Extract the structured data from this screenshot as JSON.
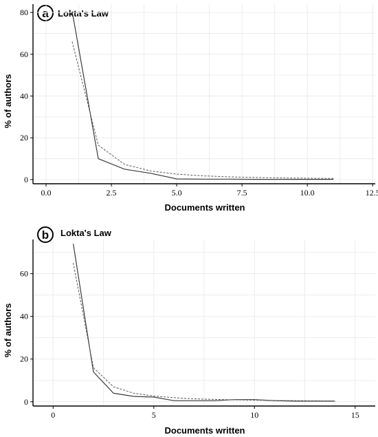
{
  "chart_data": [
    {
      "type": "line",
      "panel_label": "a",
      "title": "Lokta's Law",
      "xlabel": "Documents written",
      "ylabel": "% of authors",
      "xlim": [
        -0.5,
        12.6
      ],
      "ylim": [
        -2,
        84
      ],
      "xticks": [
        0,
        2.5,
        5,
        7.5,
        10,
        12.5
      ],
      "xtick_labels": [
        "0.0",
        "2.5",
        "5.0",
        "7.5",
        "10.0",
        "12.5"
      ],
      "yticks": [
        0,
        20,
        40,
        60,
        80
      ],
      "ytick_labels": [
        "0",
        "20",
        "40",
        "60",
        "80"
      ],
      "grid": true,
      "series": [
        {
          "style": "solid",
          "color": "#3a3a3a",
          "x": [
            1,
            2,
            3,
            4,
            5,
            6,
            7,
            8,
            9,
            10,
            11
          ],
          "y": [
            80.5,
            10,
            5,
            3,
            0.3,
            0.2,
            0.2,
            0.1,
            0.1,
            0.1,
            0.1
          ]
        },
        {
          "style": "dashed",
          "color": "#555555",
          "x": [
            1,
            2,
            3,
            4,
            5,
            6,
            7,
            8,
            9,
            10,
            11
          ],
          "y": [
            66,
            16.5,
            7.3,
            4.1,
            2.6,
            1.8,
            1.3,
            1,
            0.8,
            0.65,
            0.55
          ]
        }
      ]
    },
    {
      "type": "line",
      "panel_label": "b",
      "title": "Lokta's Law",
      "xlabel": "Documents written",
      "ylabel": "% of authors",
      "xlim": [
        -1,
        16
      ],
      "ylim": [
        -2,
        76
      ],
      "xticks": [
        0,
        5,
        10,
        15
      ],
      "xtick_labels": [
        "0",
        "5",
        "10",
        "15"
      ],
      "yticks": [
        0,
        20,
        40,
        60
      ],
      "ytick_labels": [
        "0",
        "20",
        "40",
        "60"
      ],
      "grid": true,
      "series": [
        {
          "style": "solid",
          "color": "#3a3a3a",
          "x": [
            1,
            2,
            3,
            4,
            5,
            6,
            7,
            8,
            9,
            10,
            11,
            12,
            13,
            14
          ],
          "y": [
            74,
            14,
            4,
            2.5,
            2.2,
            0.5,
            0.5,
            0.5,
            1,
            1,
            0.5,
            0.3,
            0.3,
            0.3
          ]
        },
        {
          "style": "dashed",
          "color": "#555555",
          "x": [
            1,
            2,
            3,
            4,
            5,
            6,
            7,
            8,
            9,
            10,
            11,
            12,
            13,
            14
          ],
          "y": [
            65,
            16,
            7,
            4,
            2.7,
            1.9,
            1.4,
            1.1,
            0.9,
            0.75,
            0.6,
            0.5,
            0.45,
            0.4
          ]
        }
      ]
    }
  ]
}
